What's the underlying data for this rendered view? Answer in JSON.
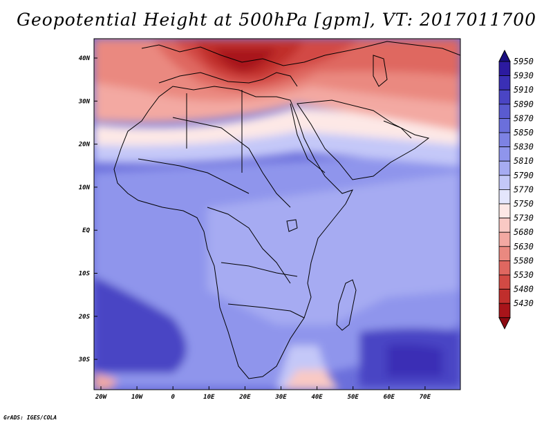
{
  "title": "Geopotential Height at 500hPa [gpm], VT: 2017011700",
  "footer": "GrADS: IGES/COLA",
  "map": {
    "lon_range": [
      -22,
      80
    ],
    "lat_range": [
      -37,
      45
    ],
    "y_ticks": [
      "40N",
      "30N",
      "20N",
      "10N",
      "EQ",
      "10S",
      "20S",
      "30S"
    ],
    "x_ticks": [
      "20W",
      "10W",
      "0",
      "10E",
      "20E",
      "30E",
      "40E",
      "50E",
      "60E",
      "70E"
    ]
  },
  "colorbar": {
    "levels": [
      "5950",
      "5930",
      "5910",
      "5890",
      "5870",
      "5850",
      "5830",
      "5810",
      "5790",
      "5770",
      "5750",
      "5730",
      "5680",
      "5630",
      "5580",
      "5530",
      "5480",
      "5430"
    ],
    "colors": [
      "#2c1aa0",
      "#3a2fb5",
      "#4a45c4",
      "#5a5bd0",
      "#6b6fdb",
      "#7d82e4",
      "#8f95ec",
      "#a6abf2",
      "#c4c8f8",
      "#e4e6fc",
      "#fde8e6",
      "#f9c9c4",
      "#f3a9a2",
      "#ea8980",
      "#df6760",
      "#d24a44",
      "#c02e2c",
      "#a8141a"
    ]
  }
}
